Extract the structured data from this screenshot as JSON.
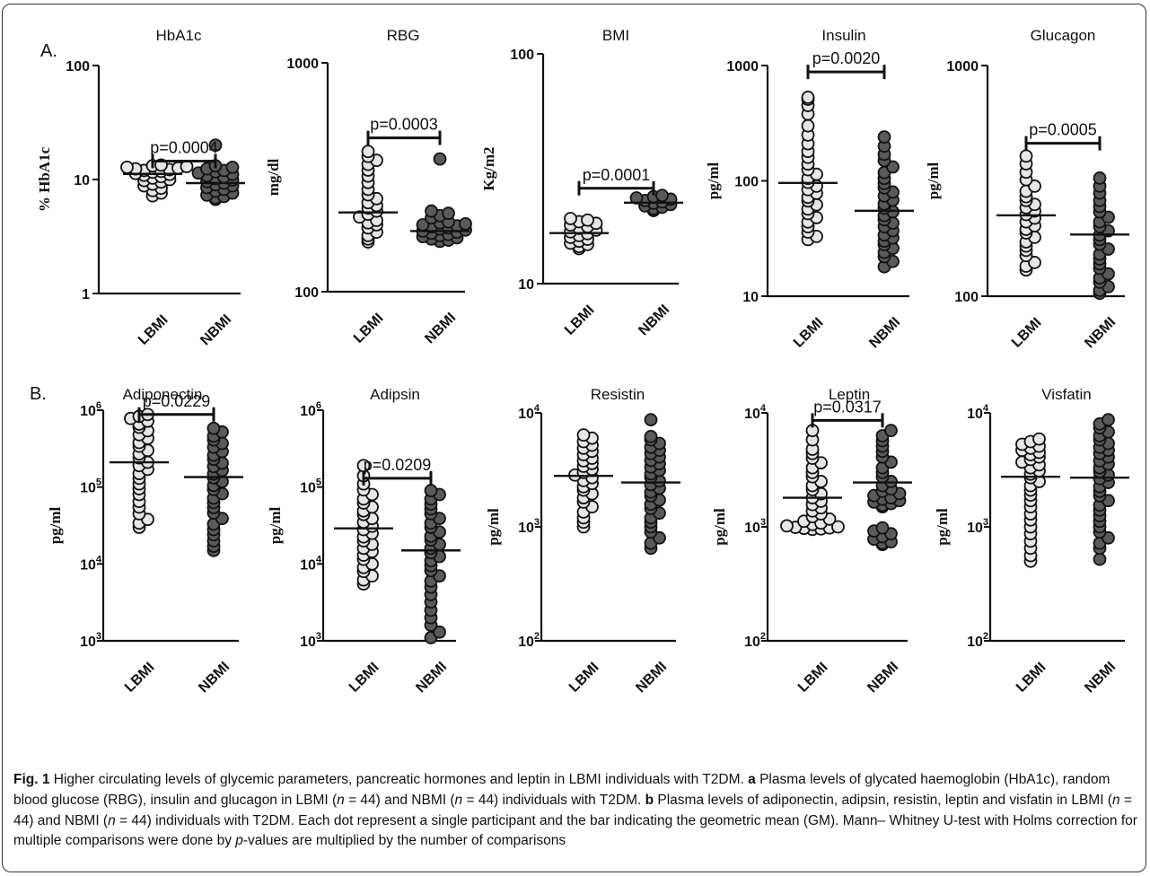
{
  "panel_labels": {
    "a": "A.",
    "b": "B."
  },
  "caption": {
    "fig_label": "Fig. 1",
    "lead": " Higher circulating levels of glycemic parameters, pancreatic hormones and leptin in LBMI individuals with T2DM. ",
    "a_label": "a",
    "a_pre": " Plasma levels of glycated haemoglobin (HbA1c), random blood glucose (RBG), insulin and glucagon in LBMI (",
    "n_italic": "n",
    "n_eq": " = 44) and NBMI (",
    "a_post": " = 44) individuals with T2DM. ",
    "b_label": "b",
    "b_pre": " Plasma levels of adiponectin, adipsin, resistin, leptin and visfatin in LBMI (",
    "b_post": " = 44) individuals with T2DM. Each dot represent a single participant and the bar indicating the geometric mean (GM). Mann– Whitney U-test with Holms correction for multiple comparisons were done by ",
    "p_italic": "p",
    "tail": "-values are multiplied by the number of comparisons"
  },
  "colors": {
    "lbmi_fill": "#e6e6e6",
    "nbmi_fill": "#5a5a5a",
    "stroke": "#111111"
  },
  "chart_data": [
    {
      "type": "scatter",
      "title": "HbA1c",
      "ylabel": "% HbA1c",
      "yscale": "log",
      "ylim": [
        1,
        100
      ],
      "ytick_labels": [
        "1",
        "10",
        "100"
      ],
      "ytick_values": [
        1,
        10,
        100
      ],
      "tick_style": "plain",
      "categories": [
        "LBMI",
        "NBMI"
      ],
      "means": [
        11.2,
        9.3
      ],
      "pvalue": "p=0.0004",
      "sig_y": 14.5,
      "series": [
        {
          "name": "LBMI",
          "values": [
            7.2,
            7.6,
            8,
            8.4,
            8.8,
            9.1,
            9.5,
            9.8,
            10,
            10.3,
            10.6,
            10.9,
            11.1,
            11.3,
            11.6,
            11.8,
            12,
            12.2,
            12.4,
            12.6,
            12.8,
            13,
            13.2,
            13.4
          ]
        },
        {
          "name": "NBMI",
          "values": [
            6.7,
            6.9,
            7.1,
            7.3,
            7.6,
            7.9,
            8.2,
            8.5,
            8.8,
            9,
            9.3,
            9.6,
            9.9,
            10.2,
            10.5,
            10.8,
            11.1,
            11.4,
            11.7,
            12,
            12.4,
            12.8,
            13.2,
            20
          ]
        }
      ]
    },
    {
      "type": "scatter",
      "title": "RBG",
      "ylabel": "mg/dl",
      "yscale": "log",
      "ylim": [
        100,
        1000
      ],
      "ytick_labels": [
        "100",
        "1000"
      ],
      "ytick_values": [
        100,
        1000
      ],
      "tick_style": "plain",
      "categories": [
        "LBMI",
        "NBMI"
      ],
      "means": [
        222,
        184
      ],
      "pvalue": "p=0.0003",
      "sig_y": 470,
      "series": [
        {
          "name": "LBMI",
          "values": [
            165,
            170,
            176,
            182,
            190,
            196,
            200,
            205,
            212,
            218,
            225,
            232,
            238,
            245,
            255,
            265,
            280,
            300,
            320,
            340,
            360,
            375,
            390,
            410
          ]
        },
        {
          "name": "NBMI",
          "values": [
            166,
            168,
            170,
            172,
            174,
            176,
            178,
            180,
            182,
            184,
            186,
            188,
            190,
            192,
            194,
            196,
            198,
            200,
            202,
            210,
            215,
            220,
            225,
            380
          ]
        }
      ]
    },
    {
      "type": "scatter",
      "title": "BMI",
      "ylabel": "Kg/m2",
      "yscale": "log",
      "ylim": [
        10,
        100
      ],
      "ytick_labels": [
        "10",
        "100"
      ],
      "ytick_values": [
        10,
        100
      ],
      "tick_style": "plain",
      "categories": [
        "LBMI",
        "NBMI"
      ],
      "means": [
        16.6,
        22.5
      ],
      "pvalue": "p=0.0001",
      "sig_y": 26,
      "series": [
        {
          "name": "LBMI",
          "values": [
            14.2,
            14.5,
            14.8,
            15,
            15.3,
            15.6,
            15.9,
            16.2,
            16.5,
            16.8,
            17.1,
            17.4,
            17.7,
            18,
            18.3,
            18.6,
            18.9,
            19.2
          ]
        },
        {
          "name": "NBMI",
          "values": [
            20.8,
            21.2,
            21.5,
            21.8,
            22.1,
            22.4,
            22.7,
            23,
            23.3,
            23.6,
            23.9,
            24.2
          ]
        }
      ]
    },
    {
      "type": "scatter",
      "title": "Insulin",
      "ylabel": "pg/ml",
      "yscale": "log",
      "ylim": [
        10,
        1000
      ],
      "ytick_labels": [
        "10",
        "100",
        "1000"
      ],
      "ytick_values": [
        10,
        100,
        1000
      ],
      "tick_style": "plain",
      "categories": [
        "LBMI",
        "NBMI"
      ],
      "means": [
        96,
        55
      ],
      "pvalue": "p=0.0020",
      "sig_y": 880,
      "series": [
        {
          "name": "LBMI",
          "values": [
            31,
            33,
            36,
            40,
            44,
            48,
            52,
            57,
            62,
            67,
            72,
            78,
            84,
            90,
            97,
            105,
            114,
            125,
            140,
            160,
            180,
            210,
            250,
            300,
            380,
            450,
            510,
            530
          ]
        },
        {
          "name": "NBMI",
          "values": [
            18,
            20,
            22,
            24,
            26,
            28,
            30,
            32,
            34,
            37,
            40,
            43,
            46,
            50,
            54,
            58,
            63,
            68,
            74,
            80,
            87,
            95,
            105,
            118,
            132,
            150,
            170,
            200,
            240
          ]
        }
      ]
    },
    {
      "type": "scatter",
      "title": "Glucagon",
      "ylabel": "pg/ml",
      "yscale": "log",
      "ylim": [
        100,
        1000
      ],
      "ytick_labels": [
        "100",
        "1000"
      ],
      "ytick_values": [
        100,
        1000
      ],
      "tick_style": "plain",
      "categories": [
        "LBMI",
        "NBMI"
      ],
      "means": [
        224,
        185
      ],
      "pvalue": "p=0.0005",
      "sig_y": 460,
      "series": [
        {
          "name": "LBMI",
          "values": [
            130,
            135,
            140,
            150,
            158,
            165,
            172,
            180,
            188,
            195,
            202,
            210,
            218,
            226,
            234,
            242,
            250,
            260,
            270,
            285,
            300,
            320,
            345,
            375,
            405
          ]
        },
        {
          "name": "NBMI",
          "values": [
            103,
            106,
            110,
            115,
            120,
            125,
            132,
            138,
            145,
            152,
            160,
            168,
            176,
            184,
            192,
            200,
            210,
            220,
            232,
            245,
            260,
            280,
            300,
            325
          ]
        }
      ]
    },
    {
      "type": "scatter",
      "title": "Adiponectin",
      "ylabel": "pg/ml",
      "yscale": "log",
      "ylim": [
        1000,
        1000000
      ],
      "ytick_labels": [
        "10",
        "10",
        "10",
        "10"
      ],
      "ytick_exponents": [
        "3",
        "4",
        "5",
        "6"
      ],
      "ytick_values": [
        1000,
        10000,
        100000,
        1000000
      ],
      "tick_style": "power",
      "categories": [
        "LBMI",
        "NBMI"
      ],
      "means": [
        210000,
        135000
      ],
      "pvalue": "p=0.0229",
      "sig_y": 880000,
      "series": [
        {
          "name": "LBMI",
          "values": [
            30000,
            34000,
            38000,
            45000,
            55000,
            65000,
            80000,
            95000,
            110000,
            130000,
            150000,
            170000,
            190000,
            210000,
            240000,
            270000,
            300000,
            340000,
            380000,
            430000,
            480000,
            540000,
            600000,
            660000,
            720000,
            780000,
            830000,
            880000
          ]
        },
        {
          "name": "NBMI",
          "values": [
            15000,
            17000,
            20000,
            24000,
            28000,
            33000,
            39000,
            46000,
            54000,
            63000,
            72000,
            82000,
            93000,
            105000,
            118000,
            132000,
            148000,
            165000,
            185000,
            205000,
            230000,
            260000,
            290000,
            330000,
            370000,
            410000,
            460000,
            520000,
            580000
          ]
        }
      ]
    },
    {
      "type": "scatter",
      "title": "Adipsin",
      "ylabel": "pg/ml",
      "yscale": "log",
      "ylim": [
        1000,
        1000000
      ],
      "ytick_labels": [
        "10",
        "10",
        "10",
        "10"
      ],
      "ytick_exponents": [
        "3",
        "4",
        "5",
        "6"
      ],
      "ytick_values": [
        1000,
        10000,
        100000,
        1000000
      ],
      "tick_style": "power",
      "categories": [
        "LBMI",
        "NBMI"
      ],
      "means": [
        29000,
        15000
      ],
      "pvalue": "p=0.0209",
      "sig_y": 130000,
      "series": [
        {
          "name": "LBMI",
          "values": [
            5500,
            6200,
            7000,
            8000,
            9000,
            10000,
            11500,
            13000,
            14500,
            16000,
            18000,
            20000,
            22500,
            25000,
            28000,
            31000,
            35000,
            39000,
            44000,
            49000,
            55000,
            62000,
            70000,
            80000,
            92000,
            110000,
            140000,
            190000
          ]
        },
        {
          "name": "NBMI",
          "values": [
            1100,
            1300,
            1600,
            2000,
            2500,
            3200,
            4000,
            5000,
            6000,
            7000,
            8200,
            9500,
            11000,
            12500,
            14000,
            16000,
            18000,
            20500,
            23000,
            26000,
            30000,
            34000,
            39000,
            45000,
            52000,
            60000,
            70000,
            80000,
            90000
          ]
        }
      ]
    },
    {
      "type": "scatter",
      "title": "Resistin",
      "ylabel": "pg/ml",
      "yscale": "log",
      "ylim": [
        100,
        10000
      ],
      "ytick_labels": [
        "10",
        "10",
        "10"
      ],
      "ytick_exponents": [
        "2",
        "3",
        "4"
      ],
      "ytick_values": [
        100,
        1000,
        10000
      ],
      "tick_style": "power",
      "categories": [
        "LBMI",
        "NBMI"
      ],
      "means": [
        2800,
        2450
      ],
      "pvalue": "",
      "sig_y": 0,
      "series": [
        {
          "name": "LBMI",
          "values": [
            1000,
            1100,
            1200,
            1350,
            1500,
            1650,
            1800,
            1950,
            2100,
            2250,
            2400,
            2550,
            2700,
            2850,
            3000,
            3200,
            3400,
            3600,
            3800,
            4000,
            4300,
            4600,
            4900,
            5200,
            5600,
            6000,
            6400
          ]
        },
        {
          "name": "NBMI",
          "values": [
            650,
            720,
            800,
            900,
            1000,
            1100,
            1200,
            1320,
            1450,
            1580,
            1720,
            1870,
            2020,
            2180,
            2350,
            2530,
            2720,
            2920,
            3130,
            3350,
            3580,
            3830,
            4100,
            4400,
            4700,
            5000,
            5400,
            5800,
            6200,
            8700
          ]
        }
      ]
    },
    {
      "type": "scatter",
      "title": "Leptin",
      "ylabel": "pg/ml",
      "yscale": "log",
      "ylim": [
        100,
        10000
      ],
      "ytick_labels": [
        "10",
        "10",
        "10"
      ],
      "ytick_exponents": [
        "2",
        "3",
        "4"
      ],
      "ytick_values": [
        100,
        1000,
        10000
      ],
      "tick_style": "power",
      "categories": [
        "LBMI",
        "NBMI"
      ],
      "means": [
        1800,
        2450
      ],
      "pvalue": "p=0.0317",
      "sig_y": 8600,
      "series": [
        {
          "name": "LBMI",
          "values": [
            950,
            960,
            970,
            980,
            990,
            1000,
            1020,
            1050,
            1080,
            1120,
            1170,
            1230,
            1300,
            1380,
            1470,
            1570,
            1680,
            1800,
            1950,
            2120,
            2300,
            2500,
            2750,
            3000,
            3300,
            3650,
            4000,
            4400,
            4800,
            5800,
            7000
          ]
        },
        {
          "name": "NBMI",
          "values": [
            700,
            720,
            740,
            780,
            820,
            870,
            920,
            980,
            1500,
            1550,
            1600,
            1650,
            1700,
            1750,
            1800,
            1880,
            1960,
            2050,
            2150,
            2300,
            2500,
            2750,
            3000,
            3300,
            3700,
            4100,
            4600,
            5100,
            5700,
            6300,
            7000
          ]
        }
      ]
    },
    {
      "type": "scatter",
      "title": "Visfatin",
      "ylabel": "pg/ml",
      "yscale": "log",
      "ylim": [
        100,
        10000
      ],
      "ytick_labels": [
        "10",
        "10",
        "10"
      ],
      "ytick_exponents": [
        "2",
        "3",
        "4"
      ],
      "ytick_values": [
        100,
        1000,
        10000
      ],
      "tick_style": "power",
      "categories": [
        "LBMI",
        "NBMI"
      ],
      "means": [
        2750,
        2700
      ],
      "pvalue": "",
      "sig_y": 0,
      "series": [
        {
          "name": "LBMI",
          "values": [
            500,
            560,
            650,
            750,
            870,
            1000,
            1150,
            1300,
            1500,
            1700,
            1900,
            2100,
            2300,
            2500,
            2700,
            2900,
            3100,
            3300,
            3500,
            3700,
            3900,
            4100,
            4300,
            4500,
            4700,
            4900,
            5100,
            5300,
            5600,
            5900
          ]
        },
        {
          "name": "NBMI",
          "values": [
            520,
            650,
            720,
            800,
            900,
            1000,
            1120,
            1250,
            1400,
            1550,
            1700,
            1870,
            2050,
            2250,
            2450,
            2650,
            2850,
            3050,
            3300,
            3550,
            3800,
            4100,
            4400,
            4700,
            5000,
            5400,
            5800,
            6300,
            6800,
            7400,
            8000,
            8700
          ]
        }
      ]
    }
  ]
}
